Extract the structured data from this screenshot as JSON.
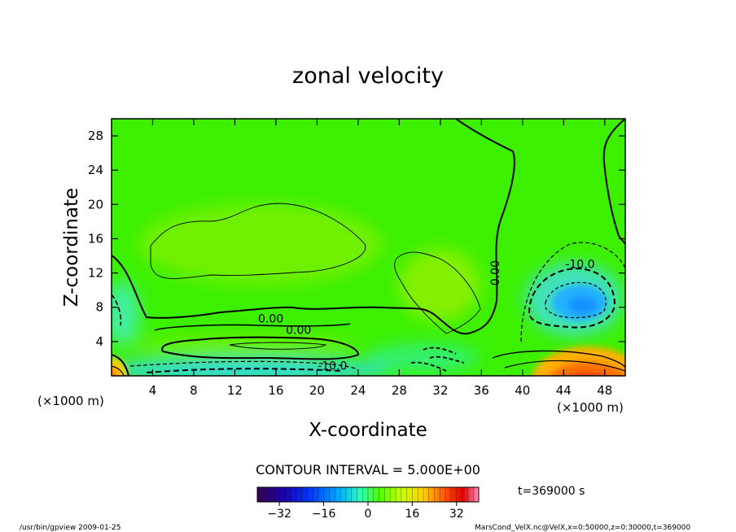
{
  "chart_data": {
    "type": "heatmap",
    "title": "zonal velocity",
    "xlabel": "X-coordinate",
    "ylabel": "Z-coordinate",
    "x_unit": "(×1000 m)",
    "y_unit": "(×1000 m)",
    "xlim": [
      0,
      50
    ],
    "ylim": [
      0,
      30
    ],
    "x_ticks": [
      4,
      8,
      12,
      16,
      20,
      24,
      28,
      32,
      36,
      40,
      44,
      48
    ],
    "y_ticks": [
      4,
      8,
      12,
      16,
      20,
      24,
      28
    ],
    "contour_labels": [
      {
        "text": "0.00",
        "x": 15.5,
        "y": 6.2
      },
      {
        "text": "0.00",
        "x": 18.2,
        "y": 4.9
      },
      {
        "text": "-10.0",
        "x": 21.5,
        "y": 0.7
      },
      {
        "text": "0.00",
        "x": 37.7,
        "y": 12.0
      },
      {
        "text": "-10.0",
        "x": 45.6,
        "y": 12.6
      }
    ],
    "contour_interval_text": "CONTOUR INTERVAL = 5.000E+00",
    "time_text": "t=369000 s",
    "colorbar": {
      "min": -40,
      "max": 40,
      "ticks": [
        -32,
        -16,
        0,
        16,
        32
      ],
      "colors": [
        "#3a0050",
        "#1a00b0",
        "#0040ff",
        "#00b8ff",
        "#30ffb0",
        "#4cff00",
        "#c8ff00",
        "#ffd000",
        "#ff5000",
        "#e00000",
        "#ff90c0"
      ]
    }
  },
  "footer": {
    "left": "/usr/bin/gpview 2009-01-25",
    "right": "MarsCond_VelX.nc@VelX,x=0:50000,z=0:30000,t=369000"
  }
}
